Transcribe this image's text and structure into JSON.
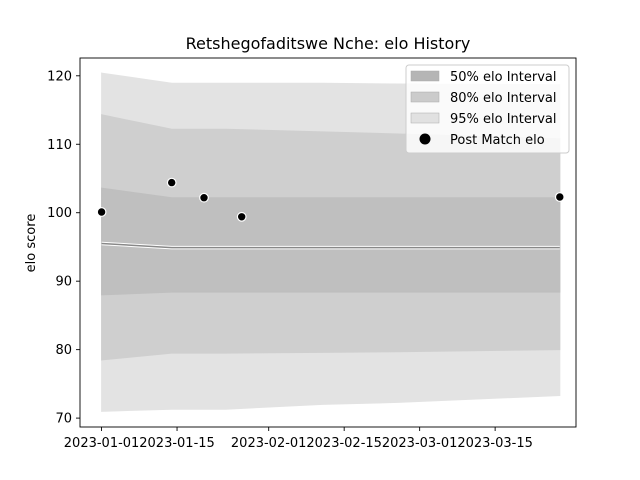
{
  "chart_data": {
    "type": "area",
    "title": "Retshegofaditswe Nche: elo History",
    "ylabel": "elo score",
    "xlabel": "",
    "xlim": [
      "2022-12-28",
      "2023-03-30"
    ],
    "ylim": [
      68.7,
      122.6
    ],
    "xticks": [
      "2023-01-01",
      "2023-01-15",
      "2023-02-01",
      "2023-02-15",
      "2023-03-01",
      "2023-03-15"
    ],
    "yticks": [
      70,
      80,
      90,
      100,
      110,
      120
    ],
    "legend_position": "upper right",
    "grid": false,
    "bands": [
      {
        "name": "95% elo Interval",
        "color": "#e3e3e3",
        "x": [
          "2023-01-01",
          "2023-01-14",
          "2023-01-24",
          "2023-02-11",
          "2023-02-25",
          "2023-03-27"
        ],
        "lower": [
          71.0,
          71.3,
          71.3,
          72.0,
          72.3,
          73.3
        ],
        "upper": [
          120.4,
          118.9,
          118.9,
          118.9,
          118.8,
          118.7
        ]
      },
      {
        "name": "80% elo Interval",
        "color": "#cfcfcf",
        "x": [
          "2023-01-01",
          "2023-01-14",
          "2023-01-24",
          "2023-02-11",
          "2023-02-25",
          "2023-03-27"
        ],
        "lower": [
          78.5,
          79.5,
          79.5,
          79.6,
          79.7,
          80.0
        ],
        "upper": [
          114.3,
          112.2,
          112.2,
          111.8,
          111.5,
          110.8
        ]
      },
      {
        "name": "50% elo Interval",
        "color": "#bfbfbf",
        "x": [
          "2023-01-01",
          "2023-01-14",
          "2023-01-24",
          "2023-02-11",
          "2023-02-25",
          "2023-03-27"
        ],
        "lower": [
          88.0,
          88.4,
          88.4,
          88.4,
          88.4,
          88.4
        ],
        "upper": [
          103.6,
          102.2,
          102.2,
          102.2,
          102.2,
          102.2
        ]
      }
    ],
    "mean_line": {
      "color": "#888888",
      "x": [
        "2023-01-01",
        "2023-01-14",
        "2023-01-24",
        "2023-02-11",
        "2023-02-25",
        "2023-03-27"
      ],
      "y": [
        95.5,
        94.9,
        94.9,
        94.9,
        94.9,
        94.9
      ]
    },
    "points": {
      "name": "Post Match elo",
      "color": "#000000",
      "x": [
        "2023-01-01",
        "2023-01-14",
        "2023-01-20",
        "2023-01-27",
        "2023-03-27"
      ],
      "y": [
        100.1,
        104.4,
        102.2,
        99.4,
        102.3
      ]
    },
    "legend": [
      {
        "label": "50% elo Interval",
        "kind": "patch",
        "color": "#b5b5b5"
      },
      {
        "label": "80% elo Interval",
        "kind": "patch",
        "color": "#cbcbcb"
      },
      {
        "label": "95% elo Interval",
        "kind": "patch",
        "color": "#e1e1e1"
      },
      {
        "label": "Post Match elo",
        "kind": "marker",
        "color": "#000000"
      }
    ]
  }
}
